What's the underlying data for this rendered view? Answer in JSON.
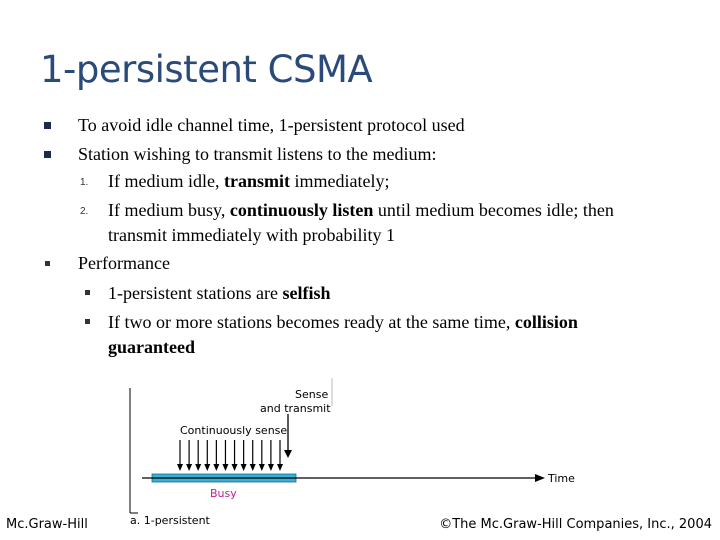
{
  "title": "1-persistent CSMA",
  "bullets": [
    {
      "text": "To avoid idle channel time, 1-persistent protocol used"
    },
    {
      "text": "Station wishing to transmit listens to the medium:"
    },
    {
      "text": "Performance"
    }
  ],
  "numbered": [
    {
      "marker": "1.",
      "pre": "If medium idle, ",
      "bold": "transmit",
      "post": " immediately;"
    },
    {
      "marker": "2.",
      "pre": "If medium busy, ",
      "bold": "continuously listen",
      "post": " until medium becomes idle; then",
      "cont": "transmit immediately with probability 1"
    }
  ],
  "sub_bullets": [
    {
      "pre": "1-persistent stations are ",
      "bold": "selfish",
      "post": ""
    },
    {
      "pre": "If two or more stations becomes ready at the same time, ",
      "bold": "collision",
      "post": "",
      "cont": "guaranteed"
    }
  ],
  "figure": {
    "sense_label_1": "Sense",
    "sense_label_2": "and transmit",
    "continuous_label": "Continuously sense",
    "time_label": "Time",
    "busy_label": "Busy",
    "caption": "a. 1-persistent",
    "busy_color": "#3ab0d6",
    "arrow_count": 12
  },
  "footer": {
    "left": "Mc.Graw-Hill",
    "right": "©The Mc.Graw-Hill Companies, Inc., 2004"
  },
  "colors": {
    "title": "#2a4a7a",
    "bullet": "#1a2a4a"
  }
}
